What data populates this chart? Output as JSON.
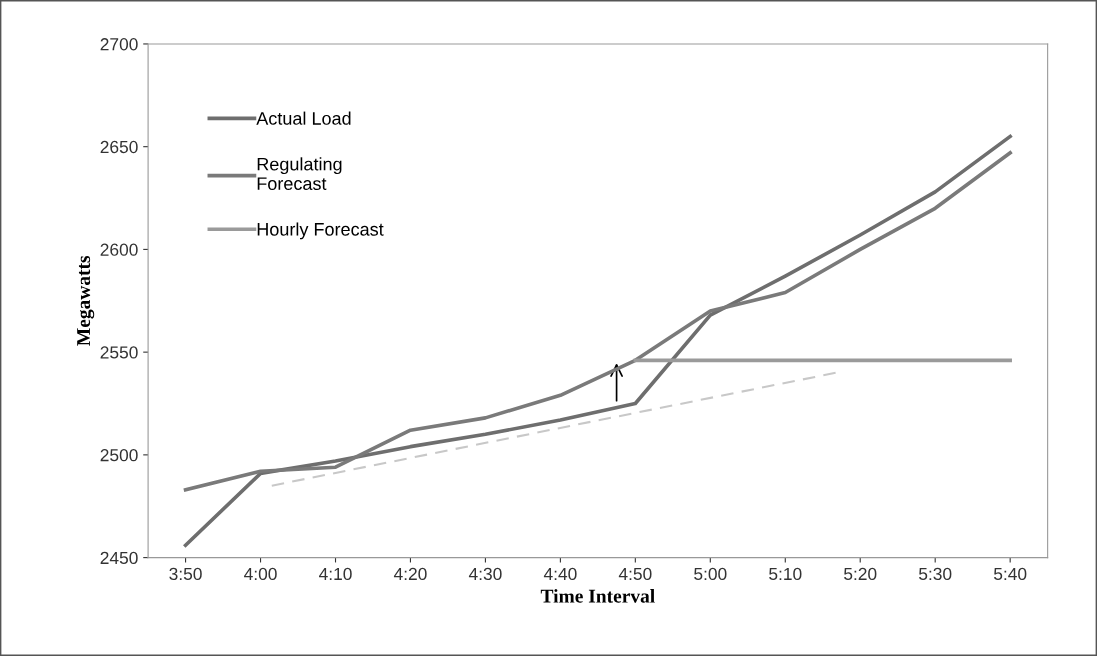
{
  "chart_data": {
    "type": "line",
    "xlabel": "Time Interval",
    "ylabel": "Megawatts",
    "x": [
      3.8333,
      4.0,
      4.1667,
      4.3333,
      4.5,
      4.6667,
      4.8333,
      5.0,
      5.1667,
      5.3333,
      5.5,
      5.6667
    ],
    "series": [
      {
        "name": "Actual Load",
        "color": "#6e6e6e",
        "values": [
          2456,
          2491,
          2497,
          2504,
          2510,
          2517,
          2525,
          2568,
          2587,
          2607,
          2628,
          2655
        ]
      },
      {
        "name": "Regulating\nForecast",
        "color": "#7a7a7a",
        "values": [
          2483,
          2492,
          2494,
          2512,
          2518,
          2529,
          2546,
          2570,
          2579,
          2600,
          2620,
          2647
        ]
      },
      {
        "name": "Hourly Forecast",
        "color": "#9a9a9a",
        "values": [
          null,
          null,
          null,
          null,
          null,
          null,
          2546,
          2546,
          2546,
          2546,
          2546,
          2546
        ]
      },
      {
        "color": "#c8c8c8",
        "x": [
          4.025,
          5.28
        ],
        "values": [
          2485,
          2540
        ],
        "line_style": "dashed"
      }
    ],
    "xlim": [
      3.75,
      5.75
    ],
    "xticks": [
      {
        "value": 3.8333,
        "label": "3:50"
      },
      {
        "value": 4.0,
        "label": "4:00"
      },
      {
        "value": 4.1667,
        "label": "4:10"
      },
      {
        "value": 4.3333,
        "label": "4:20"
      },
      {
        "value": 4.5,
        "label": "4:30"
      },
      {
        "value": 4.6667,
        "label": "4:40"
      },
      {
        "value": 4.8333,
        "label": "4:50"
      },
      {
        "value": 5.0,
        "label": "5:00"
      },
      {
        "value": 5.1667,
        "label": "5:10"
      },
      {
        "value": 5.3333,
        "label": "5:20"
      },
      {
        "value": 5.5,
        "label": "5:30"
      },
      {
        "value": 5.6667,
        "label": "5:40"
      }
    ],
    "ylim": [
      2450,
      2700
    ],
    "yticks": [
      2450,
      2500,
      2550,
      2600,
      2650,
      2700
    ],
    "grid": false,
    "legend": "top left",
    "marker": "none",
    "line_style": "solid"
  }
}
